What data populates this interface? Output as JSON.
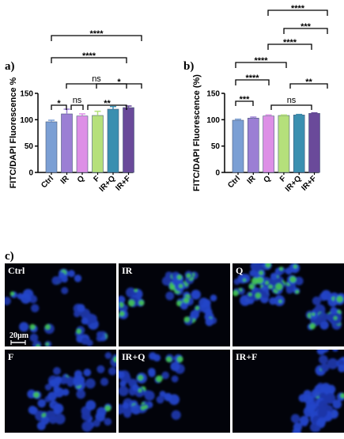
{
  "chart_data": [
    {
      "type": "bar",
      "panel": "a)",
      "ylabel": "FITC/DAPI Fluorescence %",
      "ylim": [
        0,
        150
      ],
      "yticks": [
        0,
        50,
        100,
        150
      ],
      "categories": [
        "Ctrl",
        "IR",
        "Q",
        "F",
        "IR+Q",
        "IR+F"
      ],
      "values": [
        96,
        111,
        107,
        108,
        120,
        123
      ],
      "errors": [
        3,
        9,
        4,
        8,
        5,
        3
      ],
      "colors": [
        "#7b9fd4",
        "#9b7fd4",
        "#dd8fe6",
        "#b5e07b",
        "#3a8fb0",
        "#6a4a9a"
      ],
      "comparisons": [
        {
          "from": 0,
          "to": 5,
          "label": "****"
        },
        {
          "from": 0,
          "to": 4,
          "label": "****"
        },
        {
          "from": 1,
          "to": 4,
          "label": "ns"
        },
        {
          "from": 3,
          "to": 5,
          "label": "*"
        },
        {
          "from": 0,
          "to": 1,
          "label": "*"
        },
        {
          "from": 1,
          "to": 2,
          "label": "ns"
        },
        {
          "from": 2,
          "to": 4,
          "label": "**"
        }
      ]
    },
    {
      "type": "bar",
      "panel": "b)",
      "ylabel": "FITC/DAPI Fluorescence (%)",
      "ylim": [
        0,
        150
      ],
      "yticks": [
        0,
        50,
        100,
        150
      ],
      "categories": [
        "Ctrl",
        "IR",
        "Q",
        "F",
        "IR+Q",
        "IR+F"
      ],
      "values": [
        99,
        103,
        107,
        108,
        109,
        112
      ],
      "errors": [
        2,
        2,
        2,
        1,
        1,
        1
      ],
      "colors": [
        "#7b9fd4",
        "#9b7fd4",
        "#dd8fe6",
        "#b5e07b",
        "#3a8fb0",
        "#6a4a9a"
      ],
      "comparisons": [
        {
          "from": 2,
          "to": 5,
          "label": "****"
        },
        {
          "from": 3,
          "to": 5,
          "label": "***"
        },
        {
          "from": 2,
          "to": 5,
          "label": "****"
        },
        {
          "from": 0,
          "to": 3,
          "label": "****"
        },
        {
          "from": 0,
          "to": 2,
          "label": "****"
        },
        {
          "from": 0,
          "to": 1,
          "label": "***"
        },
        {
          "from": 4,
          "to": 5,
          "label": "**"
        },
        {
          "from": 2,
          "to": 4,
          "label": "ns"
        }
      ]
    }
  ],
  "panel_c": {
    "letter": "c)",
    "images": [
      {
        "label": "Ctrl",
        "green": 0.15
      },
      {
        "label": "IR",
        "green": 0.5
      },
      {
        "label": "Q",
        "green": 0.55
      },
      {
        "label": "F",
        "green": 0.12
      },
      {
        "label": "IR+Q",
        "green": 0.2
      },
      {
        "label": "IR+F",
        "green": 0.06
      }
    ],
    "scale_bar": "20µm"
  }
}
